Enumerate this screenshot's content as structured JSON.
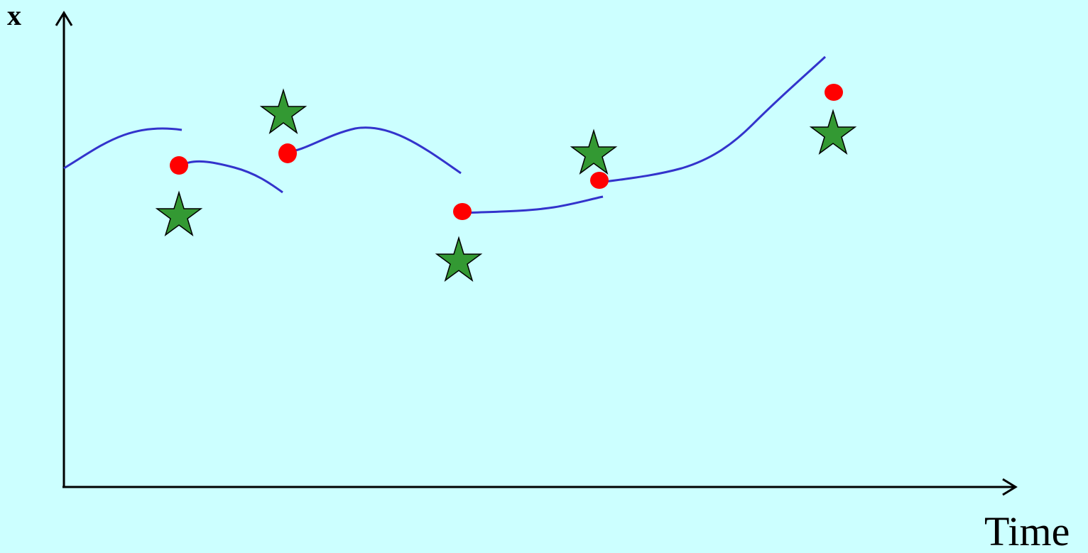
{
  "diagram": {
    "y_axis_label": "x",
    "x_axis_label": "Time",
    "colors": {
      "background": "#ccffff",
      "axis": "#000000",
      "trajectory": "#3333cc",
      "estimate_dot": "#ff0000",
      "measurement_star": "#339933",
      "star_outline": "#000000"
    },
    "elements": {
      "trajectory_segments": 5,
      "estimate_dots": 5,
      "measurement_stars": 5
    }
  }
}
